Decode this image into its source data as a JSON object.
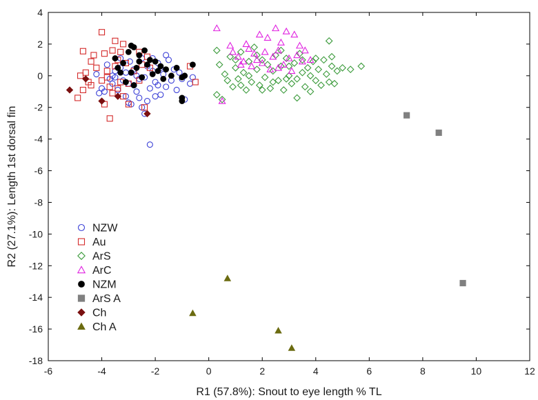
{
  "chart_data": {
    "type": "scatter",
    "xlabel": "R1 (57.8%): Snout to eye length % TL",
    "ylabel": "R2 (27.1%): Length 1st dorsal fin",
    "xlim": [
      -6,
      12
    ],
    "ylim": [
      -18,
      4
    ],
    "xticks": [
      -6,
      -4,
      -2,
      0,
      2,
      4,
      6,
      8,
      10,
      12
    ],
    "yticks": [
      -18,
      -16,
      -14,
      -12,
      -10,
      -8,
      -6,
      -4,
      -2,
      0,
      2,
      4
    ],
    "grid": false,
    "legend": "bottom-left",
    "series": [
      {
        "name": "NZW",
        "marker": "circle-open",
        "color": "#3a3fd6",
        "points": [
          [
            -4.2,
            0.1
          ],
          [
            -4.0,
            -0.8
          ],
          [
            -4.1,
            -1.1
          ],
          [
            -3.9,
            -1.0
          ],
          [
            -3.8,
            0.7
          ],
          [
            -3.7,
            -0.2
          ],
          [
            -3.6,
            -0.5
          ],
          [
            -3.5,
            0.3
          ],
          [
            -3.4,
            -0.9
          ],
          [
            -3.3,
            0.5
          ],
          [
            -3.2,
            -0.3
          ],
          [
            -3.1,
            0.2
          ],
          [
            -3.0,
            -1.7
          ],
          [
            -2.9,
            -1.8
          ],
          [
            -2.95,
            0.9
          ],
          [
            -2.8,
            -0.6
          ],
          [
            -2.7,
            0.0
          ],
          [
            -2.6,
            -1.4
          ],
          [
            -2.5,
            1.1
          ],
          [
            -2.4,
            -0.1
          ],
          [
            -2.3,
            0.6
          ],
          [
            -2.2,
            -0.8
          ],
          [
            -2.1,
            0.3
          ],
          [
            -2.0,
            -0.4
          ],
          [
            -1.9,
            0.8
          ],
          [
            -1.8,
            -1.2
          ],
          [
            -1.7,
            0.1
          ],
          [
            -1.6,
            -0.7
          ],
          [
            -1.5,
            1.0
          ],
          [
            -1.4,
            -0.3
          ],
          [
            -1.3,
            0.4
          ],
          [
            -1.2,
            -0.9
          ],
          [
            -1.1,
            0.2
          ],
          [
            -1.0,
            -0.2
          ],
          [
            -0.9,
            -1.5
          ],
          [
            -0.7,
            -0.5
          ],
          [
            -0.6,
            -0.1
          ],
          [
            -2.2,
            -4.35
          ],
          [
            -2.5,
            -2.0
          ],
          [
            -2.4,
            -2.4
          ],
          [
            -2.6,
            -0.2
          ],
          [
            -2.8,
            0.4
          ],
          [
            -3.0,
            -0.5
          ],
          [
            -3.3,
            1.1
          ],
          [
            -1.6,
            1.3
          ],
          [
            -2.1,
            1.1
          ],
          [
            -3.5,
            -0.1
          ],
          [
            -2.0,
            -1.3
          ],
          [
            -1.8,
            0.5
          ],
          [
            -2.7,
            -1.0
          ],
          [
            -3.1,
            -1.3
          ],
          [
            -3.6,
            0.0
          ],
          [
            -2.3,
            -1.6
          ],
          [
            -1.9,
            -0.6
          ],
          [
            -2.9,
            0.2
          ]
        ]
      },
      {
        "name": "Au",
        "marker": "square-open",
        "color": "#d42a2a",
        "points": [
          [
            -4.0,
            2.75
          ],
          [
            -3.6,
            1.6
          ],
          [
            -3.5,
            2.2
          ],
          [
            -3.2,
            2.0
          ],
          [
            -3.3,
            1.5
          ],
          [
            -4.7,
            1.55
          ],
          [
            -4.3,
            1.3
          ],
          [
            -3.9,
            1.4
          ],
          [
            -4.4,
            0.9
          ],
          [
            -4.6,
            0.2
          ],
          [
            -4.5,
            -0.4
          ],
          [
            -4.8,
            0.0
          ],
          [
            -4.9,
            -1.4
          ],
          [
            -4.7,
            -0.9
          ],
          [
            -4.4,
            -0.6
          ],
          [
            -4.0,
            -0.3
          ],
          [
            -3.8,
            -0.1
          ],
          [
            -3.7,
            -0.7
          ],
          [
            -3.6,
            -1.1
          ],
          [
            -3.4,
            -0.8
          ],
          [
            -3.3,
            -0.4
          ],
          [
            -3.1,
            0.8
          ],
          [
            -3.5,
            0.6
          ],
          [
            -3.2,
            -1.3
          ],
          [
            -3.0,
            -0.5
          ],
          [
            -2.8,
            0.3
          ],
          [
            -2.6,
            1.5
          ],
          [
            -3.7,
            -2.7
          ],
          [
            -3.9,
            -1.8
          ],
          [
            -2.6,
            -0.3
          ],
          [
            -2.3,
            1.2
          ],
          [
            -2.4,
            -2.0
          ],
          [
            -2.5,
            0.7
          ],
          [
            -2.2,
            0.5
          ],
          [
            -3.0,
            -1.8
          ],
          [
            -3.4,
            1.0
          ],
          [
            -3.8,
            0.3
          ],
          [
            -4.2,
            0.5
          ],
          [
            -0.5,
            -0.4
          ],
          [
            -0.7,
            0.6
          ]
        ]
      },
      {
        "name": "ArS",
        "marker": "diamond-open",
        "color": "#3a9a3a",
        "points": [
          [
            0.3,
            1.6
          ],
          [
            0.4,
            0.7
          ],
          [
            0.3,
            -1.2
          ],
          [
            0.5,
            -1.5
          ],
          [
            0.6,
            0.1
          ],
          [
            0.8,
            1.2
          ],
          [
            0.9,
            -0.7
          ],
          [
            1.0,
            0.5
          ],
          [
            1.1,
            -0.2
          ],
          [
            1.2,
            1.5
          ],
          [
            1.3,
            0.2
          ],
          [
            1.4,
            -0.9
          ],
          [
            1.5,
            0.9
          ],
          [
            1.6,
            -0.4
          ],
          [
            1.7,
            1.8
          ],
          [
            1.8,
            0.4
          ],
          [
            1.9,
            -0.6
          ],
          [
            2.0,
            1.0
          ],
          [
            2.1,
            -0.1
          ],
          [
            2.2,
            0.7
          ],
          [
            2.3,
            -0.8
          ],
          [
            2.4,
            0.3
          ],
          [
            2.5,
            1.3
          ],
          [
            2.6,
            -0.3
          ],
          [
            2.7,
            0.6
          ],
          [
            2.8,
            -0.9
          ],
          [
            2.9,
            1.1
          ],
          [
            3.0,
            0.0
          ],
          [
            3.1,
            -0.5
          ],
          [
            3.2,
            0.8
          ],
          [
            3.3,
            -0.2
          ],
          [
            3.4,
            1.4
          ],
          [
            3.5,
            0.2
          ],
          [
            3.6,
            -0.7
          ],
          [
            3.7,
            0.5
          ],
          [
            3.8,
            -1.0
          ],
          [
            3.9,
            0.9
          ],
          [
            4.0,
            -0.3
          ],
          [
            4.1,
            0.4
          ],
          [
            4.2,
            -0.6
          ],
          [
            4.3,
            1.0
          ],
          [
            4.4,
            0.1
          ],
          [
            4.5,
            -0.4
          ],
          [
            4.6,
            0.6
          ],
          [
            4.7,
            -0.5
          ],
          [
            4.8,
            0.3
          ],
          [
            5.0,
            0.5
          ],
          [
            5.3,
            0.4
          ],
          [
            5.7,
            0.6
          ],
          [
            4.5,
            2.2
          ],
          [
            4.0,
            1.1
          ],
          [
            3.3,
            -1.4
          ],
          [
            2.0,
            -0.9
          ],
          [
            1.5,
            0.0
          ],
          [
            1.0,
            1.0
          ],
          [
            0.7,
            -0.3
          ],
          [
            1.8,
            1.3
          ],
          [
            2.7,
            1.6
          ],
          [
            3.8,
            0.0
          ],
          [
            4.6,
            1.2
          ],
          [
            2.4,
            -0.4
          ],
          [
            3.0,
            0.6
          ],
          [
            1.2,
            -0.6
          ],
          [
            2.9,
            -0.2
          ],
          [
            3.5,
            1.0
          ]
        ]
      },
      {
        "name": "ArC",
        "marker": "triangle-open",
        "color": "#e020e0",
        "points": [
          [
            0.3,
            3.0
          ],
          [
            0.5,
            -1.6
          ],
          [
            0.8,
            1.9
          ],
          [
            0.9,
            1.5
          ],
          [
            1.1,
            1.2
          ],
          [
            1.3,
            0.9
          ],
          [
            1.4,
            2.0
          ],
          [
            1.5,
            1.7
          ],
          [
            1.6,
            0.6
          ],
          [
            1.7,
            1.4
          ],
          [
            1.8,
            1.0
          ],
          [
            1.9,
            2.6
          ],
          [
            2.0,
            0.8
          ],
          [
            2.1,
            1.5
          ],
          [
            2.3,
            0.4
          ],
          [
            2.4,
            1.2
          ],
          [
            2.5,
            3.0
          ],
          [
            2.6,
            1.6
          ],
          [
            2.7,
            2.1
          ],
          [
            2.8,
            0.7
          ],
          [
            2.9,
            2.8
          ],
          [
            3.0,
            1.1
          ],
          [
            3.1,
            0.3
          ],
          [
            3.2,
            2.6
          ],
          [
            3.3,
            1.3
          ],
          [
            3.4,
            1.9
          ],
          [
            3.5,
            0.9
          ],
          [
            3.6,
            1.6
          ],
          [
            3.8,
            1.0
          ],
          [
            1.2,
            0.7
          ],
          [
            2.2,
            2.4
          ],
          [
            2.6,
            0.5
          ]
        ]
      },
      {
        "name": "NZM",
        "marker": "circle-filled",
        "color": "#000000",
        "points": [
          [
            -3.5,
            1.1
          ],
          [
            -3.3,
            0.2
          ],
          [
            -3.2,
            0.8
          ],
          [
            -3.1,
            -0.4
          ],
          [
            -3.0,
            1.5
          ],
          [
            -2.9,
            1.9
          ],
          [
            -2.8,
            1.8
          ],
          [
            -2.7,
            0.5
          ],
          [
            -2.6,
            1.3
          ],
          [
            -2.5,
            -0.1
          ],
          [
            -2.4,
            1.6
          ],
          [
            -2.3,
            0.7
          ],
          [
            -2.2,
            1.0
          ],
          [
            -2.1,
            0.1
          ],
          [
            -2.0,
            0.9
          ],
          [
            -1.9,
            0.3
          ],
          [
            -1.8,
            0.6
          ],
          [
            -1.7,
            -0.2
          ],
          [
            -1.6,
            0.4
          ],
          [
            -1.4,
            0.0
          ],
          [
            -1.2,
            0.5
          ],
          [
            -1.0,
            -0.1
          ],
          [
            -0.9,
            0.0
          ],
          [
            -0.6,
            0.7
          ],
          [
            -1.0,
            -1.4
          ],
          [
            -1.0,
            -1.6
          ],
          [
            -2.8,
            -0.6
          ],
          [
            -3.4,
            0.5
          ],
          [
            -2.9,
            0.2
          ],
          [
            -2.6,
            0.9
          ]
        ]
      },
      {
        "name": "ArS A",
        "marker": "square-filled",
        "color": "#808080",
        "points": [
          [
            7.4,
            -2.5
          ],
          [
            8.6,
            -3.6
          ],
          [
            9.5,
            -13.1
          ]
        ]
      },
      {
        "name": "Ch",
        "marker": "diamond-filled",
        "color": "#7a1010",
        "points": [
          [
            -5.2,
            -0.9
          ],
          [
            -4.6,
            -0.2
          ],
          [
            -4.0,
            -1.6
          ],
          [
            -3.4,
            -1.3
          ],
          [
            -2.3,
            -2.4
          ]
        ]
      },
      {
        "name": "Ch A",
        "marker": "triangle-filled",
        "color": "#6b6b10",
        "points": [
          [
            -0.6,
            -15.0
          ],
          [
            0.7,
            -12.8
          ],
          [
            2.6,
            -16.1
          ],
          [
            3.1,
            -17.2
          ]
        ]
      }
    ]
  }
}
